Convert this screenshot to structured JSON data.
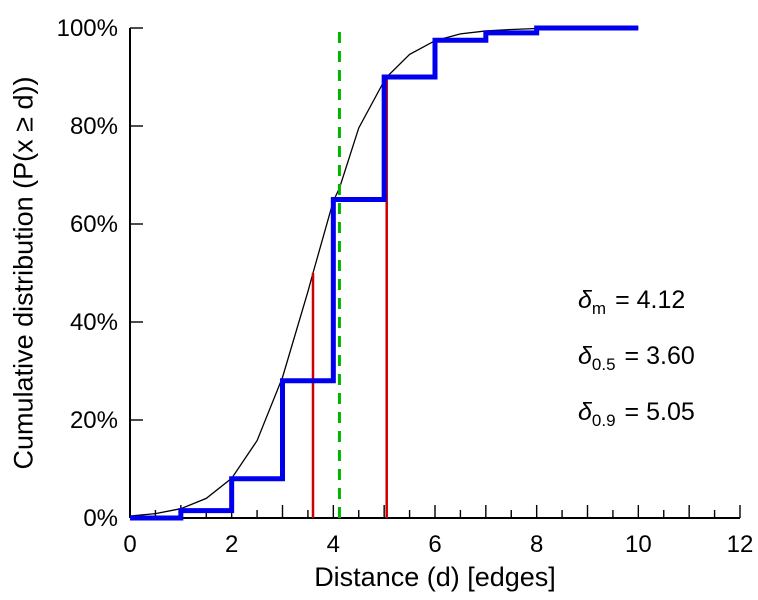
{
  "figure": {
    "background": "#ffffff"
  },
  "chart_data": {
    "type": "line",
    "title": "",
    "xlabel": "Distance (d) [edges]",
    "ylabel": "Cumulative distribution (P(x ≥ d))",
    "xlim": [
      0,
      12
    ],
    "ylim": [
      0,
      100
    ],
    "grid": false,
    "legend": "none",
    "x_minor_step": 0.5,
    "x_tick_labels": [
      {
        "v": 0,
        "label": "0"
      },
      {
        "v": 2,
        "label": "2"
      },
      {
        "v": 4,
        "label": "4"
      },
      {
        "v": 6,
        "label": "6"
      },
      {
        "v": 8,
        "label": "8"
      },
      {
        "v": 10,
        "label": "10"
      },
      {
        "v": 12,
        "label": "12"
      }
    ],
    "y_ticks": [
      {
        "v": 0,
        "label": "0%"
      },
      {
        "v": 20,
        "label": "20%"
      },
      {
        "v": 40,
        "label": "40%"
      },
      {
        "v": 60,
        "label": "60%"
      },
      {
        "v": 80,
        "label": "80%"
      },
      {
        "v": 100,
        "label": "100%"
      }
    ],
    "series": [
      {
        "name": "fitted-cdf-curve",
        "color": "#000000",
        "width": 1.3,
        "points": [
          [
            0,
            0.4
          ],
          [
            0.5,
            0.9
          ],
          [
            1,
            1.9
          ],
          [
            1.5,
            4.0
          ],
          [
            2,
            8.1
          ],
          [
            2.5,
            15.8
          ],
          [
            3,
            28.7
          ],
          [
            3.5,
            46.2
          ],
          [
            3.6,
            50
          ],
          [
            4,
            64.7
          ],
          [
            4.12,
            67.3
          ],
          [
            4.5,
            79.6
          ],
          [
            5,
            89.2
          ],
          [
            5.05,
            90
          ],
          [
            5.5,
            94.6
          ],
          [
            6,
            97.4
          ],
          [
            6.5,
            98.8
          ],
          [
            7,
            99.4
          ],
          [
            7.5,
            99.7
          ],
          [
            8,
            99.9
          ],
          [
            9,
            100
          ],
          [
            10,
            100
          ]
        ]
      },
      {
        "name": "empirical-cdf-steps",
        "color": "#0000ee",
        "width": 5,
        "points": [
          [
            0,
            0
          ],
          [
            1,
            0
          ],
          [
            1,
            1.5
          ],
          [
            2,
            1.5
          ],
          [
            2,
            8
          ],
          [
            3,
            8
          ],
          [
            3,
            28
          ],
          [
            4,
            28
          ],
          [
            4,
            65
          ],
          [
            5,
            65
          ],
          [
            5,
            90
          ],
          [
            6,
            90
          ],
          [
            6,
            97.5
          ],
          [
            7,
            97.5
          ],
          [
            7,
            99
          ],
          [
            8,
            99
          ],
          [
            8,
            100
          ],
          [
            10,
            100
          ]
        ]
      }
    ],
    "vlines": [
      {
        "name": "median-marker-line",
        "x": 3.6,
        "y0": 0,
        "y1": 50,
        "color": "#cc0000",
        "width": 2.5,
        "dash": ""
      },
      {
        "name": "p90-marker-line",
        "x": 5.05,
        "y0": 0,
        "y1": 90,
        "color": "#cc0000",
        "width": 2.5,
        "dash": ""
      },
      {
        "name": "mean-marker-line",
        "x": 4.12,
        "y0": 0,
        "y1": 100,
        "color": "#00b400",
        "width": 3,
        "dash": "11,8"
      }
    ],
    "annotations": [
      {
        "symbol": "δ",
        "subscript": "m",
        "text": "= 4.12"
      },
      {
        "symbol": "δ",
        "subscript": "0.5",
        "text": "= 3.60"
      },
      {
        "symbol": "δ",
        "subscript": "0.9",
        "text": "= 5.05"
      }
    ]
  }
}
